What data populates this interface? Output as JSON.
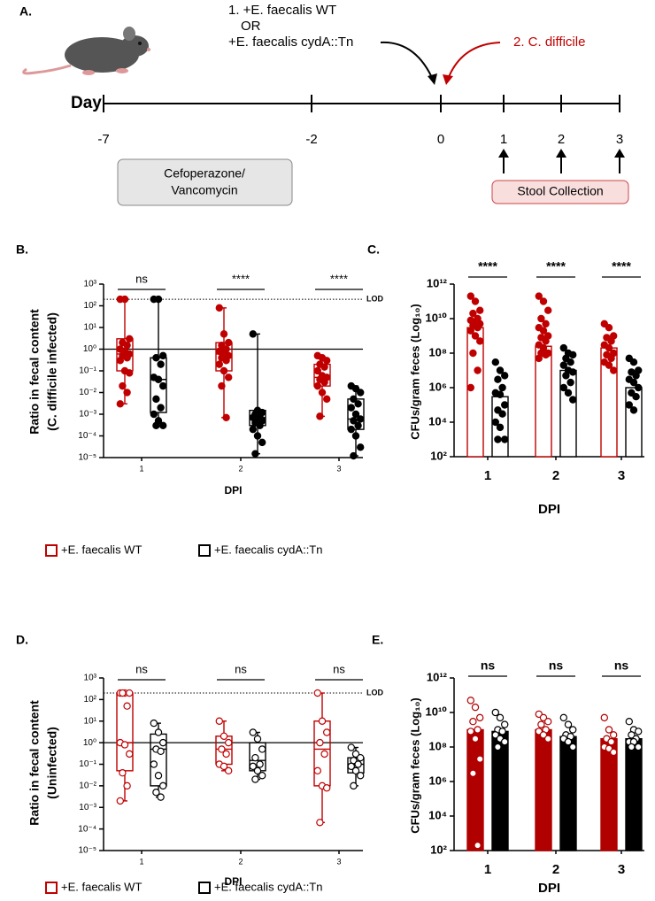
{
  "panel_a": {
    "label": "A.",
    "day_label": "Day",
    "days": [
      -7,
      -2,
      0,
      1,
      2,
      3
    ],
    "treatment": [
      "1. +E. faecalis WT",
      "OR",
      "+E. faecalis cydA::Tn"
    ],
    "infection": "2. C. difficile",
    "antibiotic": [
      "Cefoperazone/",
      "Vancomycin"
    ],
    "collection": "Stool Collection"
  },
  "chart_data": [
    {
      "type": "box",
      "panel": "B.",
      "ylabel": [
        "Ratio in fecal content",
        "(C. difficile infected)"
      ],
      "xlabel": "DPI",
      "categories": [
        "1",
        "2",
        "3"
      ],
      "yscale": "log",
      "ylim": [
        1e-05,
        1000
      ],
      "yticks": [
        {
          "value": 1e-05,
          "label": "10⁻⁵"
        },
        {
          "value": 0.0001,
          "label": "10⁻⁴"
        },
        {
          "value": 0.001,
          "label": "10⁻³"
        },
        {
          "value": 0.01,
          "label": "10⁻²"
        },
        {
          "value": 0.1,
          "label": "10⁻¹"
        },
        {
          "value": 1,
          "label": "10⁰"
        },
        {
          "value": 10,
          "label": "10¹"
        },
        {
          "value": 100,
          "label": "10²"
        },
        {
          "value": 1000,
          "label": "10³"
        }
      ],
      "reference_line": 1,
      "lod": {
        "value": 200,
        "label": "LOD"
      },
      "significance": [
        "ns",
        "****",
        "****"
      ],
      "legend": "bottom",
      "series": [
        {
          "name": "+E. faecalis WT",
          "color": "#c00000",
          "marker_fill": "#c00000",
          "boxes": [
            {
              "min": 0.003,
              "q1": 0.1,
              "median": 0.6,
              "q3": 3,
              "max": 200
            },
            {
              "min": 0.0007,
              "q1": 0.1,
              "median": 0.6,
              "q3": 2,
              "max": 80
            },
            {
              "min": 0.0008,
              "q1": 0.02,
              "median": 0.05,
              "q3": 0.2,
              "max": 0.5
            }
          ],
          "points": [
            [
              200,
              200,
              3,
              2,
              1.5,
              1,
              0.8,
              0.6,
              0.5,
              0.4,
              0.3,
              0.1,
              0.08,
              0.02,
              0.01,
              0.003
            ],
            [
              80,
              5,
              2,
              1.5,
              1,
              0.8,
              0.6,
              0.5,
              0.4,
              0.3,
              0.2,
              0.1,
              0.05,
              0.02,
              0.0007
            ],
            [
              0.5,
              0.4,
              0.3,
              0.2,
              0.15,
              0.1,
              0.06,
              0.05,
              0.04,
              0.03,
              0.02,
              0.01,
              0.005,
              0.0008
            ]
          ]
        },
        {
          "name": "+E. faecalis cydA::Tn",
          "color": "#000000",
          "marker_fill": "#000000",
          "boxes": [
            {
              "min": 0.0003,
              "q1": 0.0012,
              "median": 0.04,
              "q3": 0.4,
              "max": 200
            },
            {
              "min": 1.5e-05,
              "q1": 0.0003,
              "median": 0.0007,
              "q3": 0.0015,
              "max": 5
            },
            {
              "min": 1.2e-05,
              "q1": 0.0002,
              "median": 0.0006,
              "q3": 0.005,
              "max": 0.02
            }
          ],
          "points": [
            [
              200,
              200,
              0.5,
              0.4,
              0.2,
              0.05,
              0.04,
              0.02,
              0.005,
              0.002,
              0.001,
              0.0005,
              0.0003,
              0.0003
            ],
            [
              5,
              0.0015,
              0.0012,
              0.001,
              0.0008,
              0.0007,
              0.0006,
              0.0005,
              0.0004,
              0.0003,
              0.0002,
              0.0001,
              5e-05,
              1.5e-05
            ],
            [
              0.02,
              0.015,
              0.01,
              0.005,
              0.003,
              0.002,
              0.001,
              0.0006,
              0.0005,
              0.0003,
              0.0002,
              0.0001,
              3e-05,
              1.2e-05
            ]
          ]
        }
      ]
    },
    {
      "type": "bar",
      "panel": "C.",
      "ylabel": [
        "CFUs/gram feces (Log₁₀)"
      ],
      "xlabel": "DPI",
      "categories": [
        "1",
        "2",
        "3"
      ],
      "yscale": "log",
      "ylim": [
        100,
        1000000000000
      ],
      "yticks": [
        {
          "value": 100,
          "label": "10²"
        },
        {
          "value": 10000,
          "label": "10⁴"
        },
        {
          "value": 1000000,
          "label": "10⁶"
        },
        {
          "value": 100000000,
          "label": "10⁸"
        },
        {
          "value": 10000000000,
          "label": "10¹⁰"
        },
        {
          "value": 1000000000000,
          "label": "10¹²"
        }
      ],
      "significance": [
        "****",
        "****",
        "****"
      ],
      "series": [
        {
          "color": "#c00000",
          "bar_fill": "#ffffff",
          "marker_fill": "#c00000",
          "values": [
            3000000000,
            250000000,
            200000000
          ],
          "points": [
            [
              200000000000,
              100000000000,
              30000000000,
              20000000000,
              10000000000,
              8000000000,
              6000000000,
              5000000000,
              4000000000,
              3000000000,
              2000000000,
              1000000000,
              500000000,
              100000000,
              10000000,
              1000000
            ],
            [
              200000000000,
              100000000000,
              30000000000,
              10000000000,
              5000000000,
              3000000000,
              2000000000,
              1000000000,
              800000000,
              500000000,
              300000000,
              200000000,
              100000000,
              100000000,
              80000000,
              50000000
            ],
            [
              5000000000,
              3000000000,
              1000000000,
              800000000,
              500000000,
              300000000,
              200000000,
              100000000,
              80000000,
              50000000,
              30000000,
              20000000,
              10000000
            ]
          ]
        },
        {
          "color": "#000000",
          "bar_fill": "#ffffff",
          "marker_fill": "#000000",
          "values": [
            300000,
            10000000,
            1000000
          ],
          "points": [
            [
              30000000,
              10000000,
              5000000,
              3000000,
              1000000,
              500000,
              400000,
              100000,
              50000,
              30000,
              10000,
              5000,
              1000,
              1000
            ],
            [
              200000000,
              100000000,
              80000000,
              50000000,
              30000000,
              20000000,
              10000000,
              8000000,
              5000000,
              2000000,
              1000000,
              500000,
              200000
            ],
            [
              50000000,
              30000000,
              10000000,
              8000000,
              5000000,
              3000000,
              2000000,
              1000000,
              500000,
              300000,
              100000,
              50000
            ]
          ]
        }
      ]
    },
    {
      "type": "box",
      "panel": "D.",
      "ylabel": [
        "Ratio in fecal content",
        "(Uninfected)"
      ],
      "xlabel": "DPI",
      "categories": [
        "1",
        "2",
        "3"
      ],
      "yscale": "log",
      "ylim": [
        1e-05,
        1000
      ],
      "yticks": [
        {
          "value": 1e-05,
          "label": "10⁻⁵"
        },
        {
          "value": 0.0001,
          "label": "10⁻⁴"
        },
        {
          "value": 0.001,
          "label": "10⁻³"
        },
        {
          "value": 0.01,
          "label": "10⁻²"
        },
        {
          "value": 0.1,
          "label": "10⁻¹"
        },
        {
          "value": 1,
          "label": "10⁰"
        },
        {
          "value": 10,
          "label": "10¹"
        },
        {
          "value": 100,
          "label": "10²"
        },
        {
          "value": 1000,
          "label": "10³"
        }
      ],
      "reference_line": 1,
      "lod": {
        "value": 200,
        "label": "LOD"
      },
      "significance": [
        "ns",
        "ns",
        "ns"
      ],
      "legend": "bottom",
      "series": [
        {
          "name": "+E. faecalis WT",
          "color": "#c00000",
          "marker_fill": "#ffffff",
          "boxes": [
            {
              "min": 0.002,
              "q1": 0.05,
              "median": 1,
              "q3": 200,
              "max": 200
            },
            {
              "min": 0.05,
              "q1": 0.1,
              "median": 0.5,
              "q3": 2,
              "max": 10
            },
            {
              "min": 0.0002,
              "q1": 0.01,
              "median": 0.5,
              "q3": 10,
              "max": 200
            }
          ],
          "points": [
            [
              200,
              200,
              200,
              200,
              50,
              1,
              0.8,
              0.3,
              0.04,
              0.01,
              0.002
            ],
            [
              10,
              2,
              1,
              0.5,
              0.3,
              0.1,
              0.08,
              0.05
            ],
            [
              200,
              10,
              3,
              1,
              0.3,
              0.05,
              0.01,
              0.008,
              0.0002
            ]
          ]
        },
        {
          "name": "+E. faecalis cydA::Tn",
          "color": "#000000",
          "marker_fill": "#ffffff",
          "boxes": [
            {
              "min": 0.003,
              "q1": 0.01,
              "median": 0.5,
              "q3": 2.5,
              "max": 8
            },
            {
              "min": 0.02,
              "q1": 0.05,
              "median": 0.15,
              "q3": 1,
              "max": 3
            },
            {
              "min": 0.01,
              "q1": 0.04,
              "median": 0.1,
              "q3": 0.2,
              "max": 0.6
            }
          ],
          "points": [
            [
              8,
              3,
              1,
              0.5,
              0.4,
              0.1,
              0.03,
              0.01,
              0.005,
              0.003
            ],
            [
              3,
              1.5,
              0.5,
              0.2,
              0.1,
              0.08,
              0.05,
              0.03,
              0.02
            ],
            [
              0.6,
              0.3,
              0.2,
              0.15,
              0.1,
              0.08,
              0.05,
              0.03,
              0.01
            ]
          ]
        }
      ]
    },
    {
      "type": "bar",
      "panel": "E.",
      "ylabel": [
        "CFUs/gram feces (Log₁₀)"
      ],
      "xlabel": "DPI",
      "categories": [
        "1",
        "2",
        "3"
      ],
      "yscale": "log",
      "ylim": [
        100,
        1000000000000
      ],
      "yticks": [
        {
          "value": 100,
          "label": "10²"
        },
        {
          "value": 10000,
          "label": "10⁴"
        },
        {
          "value": 1000000,
          "label": "10⁶"
        },
        {
          "value": 100000000,
          "label": "10⁸"
        },
        {
          "value": 10000000000,
          "label": "10¹⁰"
        },
        {
          "value": 1000000000000,
          "label": "10¹²"
        }
      ],
      "significance": [
        "ns",
        "ns",
        "ns"
      ],
      "series": [
        {
          "color": "#b00000",
          "bar_fill": "#b00000",
          "marker_fill": "#ffffff",
          "values": [
            1000000000,
            1000000000,
            300000000
          ],
          "points": [
            [
              50000000000,
              20000000000,
              5000000000,
              3000000000,
              1000000000,
              800000000,
              300000000,
              20000000,
              3000000,
              200
            ],
            [
              8000000000,
              5000000000,
              3000000000,
              2000000000,
              1000000000,
              800000000,
              500000000,
              300000000
            ],
            [
              5000000000,
              1000000000,
              500000000,
              300000000,
              200000000,
              100000000,
              80000000,
              50000000
            ]
          ]
        },
        {
          "color": "#000000",
          "bar_fill": "#000000",
          "marker_fill": "#ffffff",
          "values": [
            800000000,
            400000000,
            300000000
          ],
          "points": [
            [
              10000000000,
              5000000000,
              2000000000,
              1000000000,
              800000000,
              500000000,
              300000000,
              200000000,
              100000000
            ],
            [
              5000000000,
              2000000000,
              1000000000,
              500000000,
              400000000,
              300000000,
              200000000,
              100000000
            ],
            [
              3000000000,
              1000000000,
              800000000,
              500000000,
              300000000,
              200000000,
              200000000,
              100000000,
              100000000
            ]
          ]
        }
      ]
    }
  ]
}
